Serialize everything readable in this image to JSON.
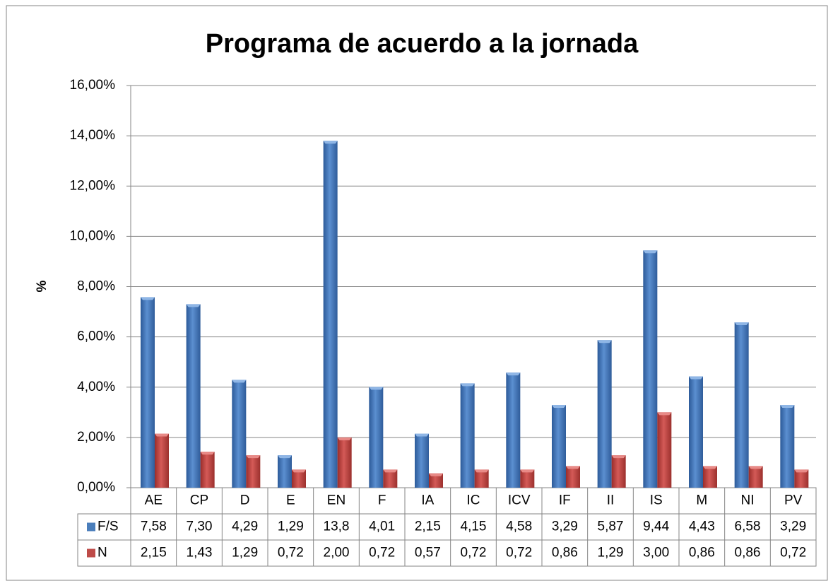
{
  "chart_data": {
    "type": "bar",
    "title": "Programa de acuerdo a la jornada",
    "y_label": "%",
    "categories": [
      "AE",
      "CP",
      "D",
      "E",
      "EN",
      "F",
      "IA",
      "IC",
      "ICV",
      "IF",
      "II",
      "IS",
      "M",
      "NI",
      "PV"
    ],
    "series": [
      {
        "name": "F/S",
        "color": "#4a7ebb",
        "values": [
          7.58,
          7.3,
          4.29,
          1.29,
          13.8,
          4.01,
          2.15,
          4.15,
          4.58,
          3.29,
          5.87,
          9.44,
          4.43,
          6.58,
          3.29
        ],
        "value_labels": [
          "7,58",
          "7,30",
          "4,29",
          "1,29",
          "13,8",
          "4,01",
          "2,15",
          "4,15",
          "4,58",
          "3,29",
          "5,87",
          "9,44",
          "4,43",
          "6,58",
          "3,29"
        ]
      },
      {
        "name": "N",
        "color": "#be4b48",
        "values": [
          2.15,
          1.43,
          1.29,
          0.72,
          2.0,
          0.72,
          0.57,
          0.72,
          0.72,
          0.86,
          1.29,
          3.0,
          0.86,
          0.86,
          0.72
        ],
        "value_labels": [
          "2,15",
          "1,43",
          "1,29",
          "0,72",
          "2,00",
          "0,72",
          "0,57",
          "0,72",
          "0,72",
          "0,86",
          "1,29",
          "3,00",
          "0,86",
          "0,86",
          "0,72"
        ]
      }
    ],
    "ylim": [
      0,
      16
    ],
    "yticks": [
      {
        "value": 0,
        "label": "0,00%"
      },
      {
        "value": 2,
        "label": "2,00%"
      },
      {
        "value": 4,
        "label": "4,00%"
      },
      {
        "value": 6,
        "label": "6,00%"
      },
      {
        "value": 8,
        "label": "8,00%"
      },
      {
        "value": 10,
        "label": "10,00%"
      },
      {
        "value": 12,
        "label": "12,00%"
      },
      {
        "value": 14,
        "label": "14,00%"
      },
      {
        "value": 16,
        "label": "16,00%"
      }
    ],
    "grid": true
  }
}
